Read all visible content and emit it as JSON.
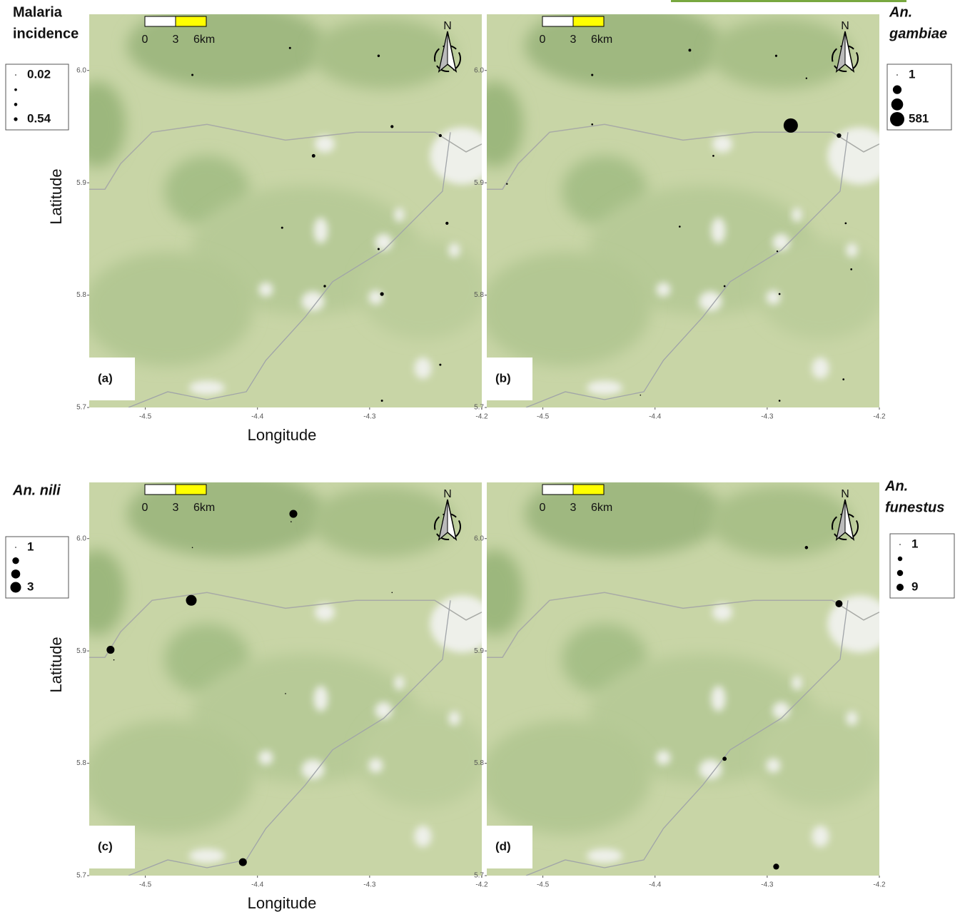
{
  "map": {
    "xlim": [
      -4.55,
      -4.2
    ],
    "ylim": [
      5.7,
      6.05
    ],
    "xticks": [
      -4.5,
      -4.4,
      -4.3,
      -4.2
    ],
    "yticks": [
      5.7,
      5.8,
      5.9,
      {
        "value": 6,
        "label": "6.0"
      }
    ],
    "scale_bar": [
      "0",
      "3",
      "6km"
    ],
    "north": "N"
  },
  "panels": [
    {
      "label": "(a)",
      "title": [
        "Malaria",
        "incidence"
      ],
      "x_label": "Longitude",
      "y_label": "Latitude",
      "legend": {
        "breaks": [
          0.02,
          0.54
        ]
      },
      "points": [
        {
          "lon": -4.458,
          "lat": 5.996,
          "value": 0.1
        },
        {
          "lon": -4.371,
          "lat": 6.02,
          "value": 0.1
        },
        {
          "lon": -4.292,
          "lat": 6.013,
          "value": 0.15
        },
        {
          "lon": -4.28,
          "lat": 5.95,
          "value": 0.3
        },
        {
          "lon": -4.237,
          "lat": 5.942,
          "value": 0.3
        },
        {
          "lon": -4.35,
          "lat": 5.924,
          "value": 0.45
        },
        {
          "lon": -4.378,
          "lat": 5.86,
          "value": 0.1
        },
        {
          "lon": -4.292,
          "lat": 5.841,
          "value": 0.1
        },
        {
          "lon": -4.34,
          "lat": 5.808,
          "value": 0.15
        },
        {
          "lon": -4.289,
          "lat": 5.801,
          "value": 0.54
        },
        {
          "lon": -4.231,
          "lat": 5.864,
          "value": 0.3
        },
        {
          "lon": -4.237,
          "lat": 5.738,
          "value": 0.1
        },
        {
          "lon": -4.289,
          "lat": 5.706,
          "value": 0.1
        }
      ]
    },
    {
      "label": "(b)",
      "title": [
        "An.",
        "gambiae"
      ],
      "legend": {
        "breaks": [
          1,
          581
        ]
      },
      "points": [
        {
          "lon": -4.456,
          "lat": 5.996,
          "value": 5
        },
        {
          "lon": -4.369,
          "lat": 6.018,
          "value": 10
        },
        {
          "lon": -4.292,
          "lat": 6.013,
          "value": 5
        },
        {
          "lon": -4.279,
          "lat": 5.951,
          "value": 581
        },
        {
          "lon": -4.236,
          "lat": 5.942,
          "value": 40
        },
        {
          "lon": -4.348,
          "lat": 5.924,
          "value": 3
        },
        {
          "lon": -4.532,
          "lat": 5.899,
          "value": 2
        },
        {
          "lon": -4.456,
          "lat": 5.952,
          "value": 3
        },
        {
          "lon": -4.378,
          "lat": 5.861,
          "value": 3
        },
        {
          "lon": -4.291,
          "lat": 5.839,
          "value": 2
        },
        {
          "lon": -4.338,
          "lat": 5.808,
          "value": 3
        },
        {
          "lon": -4.289,
          "lat": 5.801,
          "value": 3
        },
        {
          "lon": -4.23,
          "lat": 5.864,
          "value": 3
        },
        {
          "lon": -4.225,
          "lat": 5.823,
          "value": 3
        },
        {
          "lon": -4.232,
          "lat": 5.725,
          "value": 3
        },
        {
          "lon": -4.289,
          "lat": 5.706,
          "value": 3
        },
        {
          "lon": -4.413,
          "lat": 5.711,
          "value": 1
        },
        {
          "lon": -4.265,
          "lat": 5.993,
          "value": 2
        }
      ]
    },
    {
      "label": "(c)",
      "title": [
        "An. nili"
      ],
      "y_label": "Latitude",
      "x_label": "Longitude",
      "legend": {
        "breaks": [
          1,
          3
        ]
      },
      "points": [
        {
          "lon": -4.459,
          "lat": 5.945,
          "value": 3
        },
        {
          "lon": -4.531,
          "lat": 5.901,
          "value": 2
        },
        {
          "lon": -4.528,
          "lat": 5.892,
          "value": 1
        },
        {
          "lon": -4.458,
          "lat": 5.992,
          "value": 1
        },
        {
          "lon": -4.368,
          "lat": 6.022,
          "value": 2
        },
        {
          "lon": -4.37,
          "lat": 6.015,
          "value": 1
        },
        {
          "lon": -4.28,
          "lat": 5.952,
          "value": 1
        },
        {
          "lon": -4.375,
          "lat": 5.862,
          "value": 1
        },
        {
          "lon": -4.413,
          "lat": 5.712,
          "value": 2
        }
      ]
    },
    {
      "label": "(d)",
      "title": [
        "An.",
        "funestus"
      ],
      "legend": {
        "breaks": [
          1,
          9
        ]
      },
      "points": [
        {
          "lon": -4.236,
          "lat": 5.942,
          "value": 9
        },
        {
          "lon": -4.265,
          "lat": 5.992,
          "value": 2
        },
        {
          "lon": -4.338,
          "lat": 5.804,
          "value": 3
        },
        {
          "lon": -4.292,
          "lat": 5.708,
          "value": 6
        }
      ]
    }
  ]
}
